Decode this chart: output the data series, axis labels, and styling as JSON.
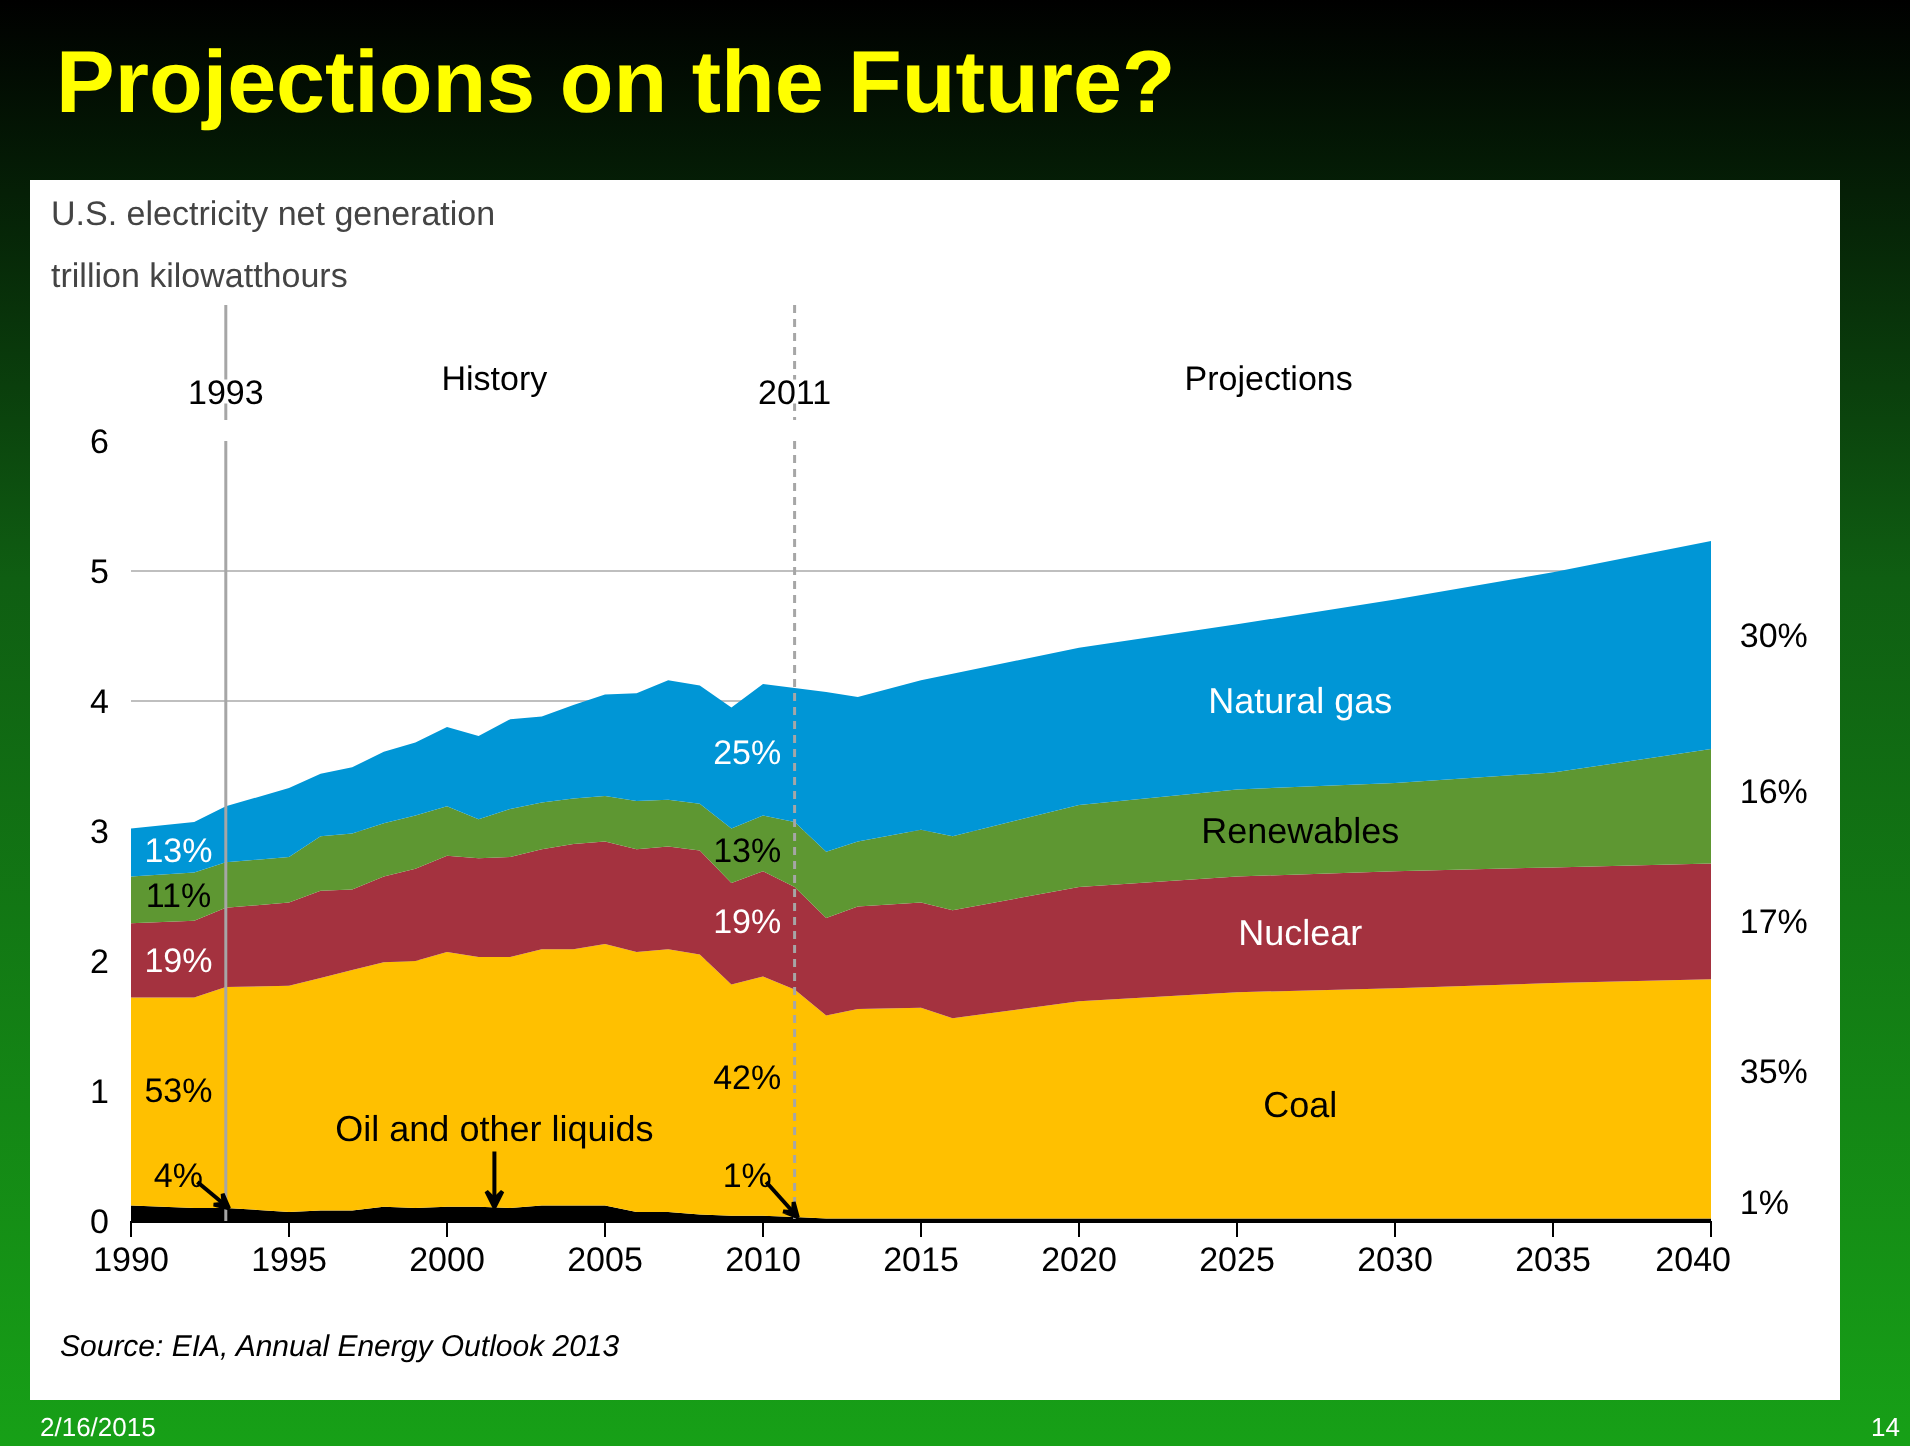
{
  "chart_data": {
    "type": "area",
    "stacked": true,
    "title": "Projections on the Future?",
    "subtitle": "U.S. electricity net generation",
    "ylabel": "trillion kilowatthours",
    "x": [
      1990,
      1992,
      1993,
      1995,
      1996,
      1997,
      1998,
      1999,
      2000,
      2001,
      2002,
      2003,
      2004,
      2005,
      2006,
      2007,
      2008,
      2009,
      2010,
      2011,
      2012,
      2013,
      2015,
      2016,
      2020,
      2025,
      2030,
      2035,
      2040
    ],
    "series": [
      {
        "name": "Oil and other liquids",
        "color": "#000000",
        "values": [
          0.12,
          0.1,
          0.1,
          0.07,
          0.08,
          0.08,
          0.11,
          0.1,
          0.11,
          0.11,
          0.1,
          0.12,
          0.12,
          0.12,
          0.07,
          0.07,
          0.05,
          0.04,
          0.04,
          0.03,
          0.02,
          0.02,
          0.02,
          0.02,
          0.02,
          0.02,
          0.02,
          0.02,
          0.02
        ]
      },
      {
        "name": "Coal",
        "color": "#ffc000",
        "values": [
          1.6,
          1.62,
          1.7,
          1.74,
          1.79,
          1.85,
          1.88,
          1.9,
          1.96,
          1.92,
          1.93,
          1.97,
          1.97,
          2.01,
          2.0,
          2.02,
          2.0,
          1.78,
          1.84,
          1.75,
          1.56,
          1.61,
          1.62,
          1.54,
          1.67,
          1.74,
          1.77,
          1.81,
          1.84
        ]
      },
      {
        "name": "Nuclear",
        "color": "#a4323f",
        "values": [
          0.57,
          0.59,
          0.61,
          0.64,
          0.67,
          0.62,
          0.66,
          0.71,
          0.74,
          0.76,
          0.77,
          0.77,
          0.81,
          0.79,
          0.79,
          0.79,
          0.8,
          0.78,
          0.81,
          0.79,
          0.75,
          0.79,
          0.81,
          0.83,
          0.88,
          0.89,
          0.9,
          0.89,
          0.89
        ]
      },
      {
        "name": "Renewables",
        "color": "#5e9732",
        "values": [
          0.36,
          0.37,
          0.35,
          0.35,
          0.42,
          0.43,
          0.41,
          0.41,
          0.38,
          0.3,
          0.37,
          0.36,
          0.35,
          0.35,
          0.37,
          0.36,
          0.36,
          0.42,
          0.43,
          0.5,
          0.51,
          0.5,
          0.56,
          0.57,
          0.63,
          0.67,
          0.68,
          0.73,
          0.88
        ]
      },
      {
        "name": "Natural gas",
        "color": "#0096d6",
        "values": [
          0.37,
          0.39,
          0.43,
          0.53,
          0.48,
          0.51,
          0.55,
          0.56,
          0.61,
          0.64,
          0.69,
          0.66,
          0.72,
          0.78,
          0.83,
          0.92,
          0.91,
          0.93,
          1.01,
          1.03,
          1.23,
          1.11,
          1.15,
          1.25,
          1.21,
          1.27,
          1.41,
          1.54,
          1.6
        ]
      }
    ],
    "xlim": [
      1990,
      2040
    ],
    "xticks": [
      1990,
      1995,
      2000,
      2005,
      2010,
      2015,
      2020,
      2025,
      2030,
      2035,
      2040
    ],
    "ylim": [
      0,
      6
    ],
    "yticks": [
      0,
      1,
      2,
      3,
      4,
      5,
      6
    ],
    "grid": "y",
    "ref_lines": [
      {
        "axis": "x",
        "value": 1993,
        "label": "1993",
        "line_style": "solid"
      },
      {
        "axis": "x",
        "value": 2011,
        "label": "2011",
        "line_style": "dashed"
      }
    ],
    "annotations": [
      "13%",
      "11%",
      "19%",
      "53%",
      "4%",
      "25%",
      "13%",
      "19%",
      "42%",
      "1%",
      "30%",
      "16%",
      "17%",
      "35%",
      "1%",
      "History",
      "Projections",
      "Source:  EIA, Annual Energy Outlook 2013",
      "2/16/2015",
      "14"
    ]
  }
}
